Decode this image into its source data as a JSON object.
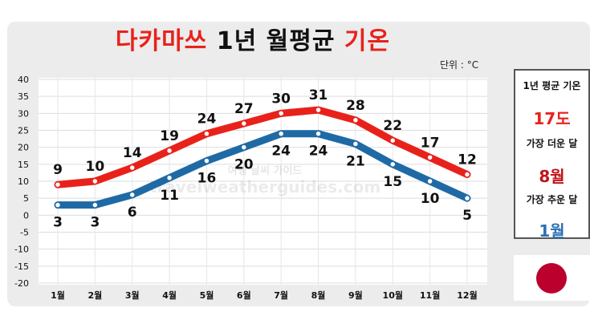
{
  "title": {
    "part1": "다카마쓰",
    "part2": "1년 월평균",
    "part3": "기온"
  },
  "unit_label": "단위 : °C",
  "watermark": {
    "line1": "여행 날씨 가이드",
    "line2": "travelweatherguides.com"
  },
  "summary": {
    "annual_avg_label": "1년 평균 기온",
    "annual_avg_value": "17도",
    "hottest_label": "가장 더운 달",
    "hottest_value": "8월",
    "coldest_label": "가장 추운 달",
    "coldest_value": "1월"
  },
  "flag": "japan-flag",
  "colors": {
    "high": "#e8221b",
    "low": "#1f6aa5",
    "accent_red": "#e8221b",
    "accent_blue": "#2f6fb4"
  },
  "chart_data": {
    "type": "line",
    "categories": [
      "1월",
      "2월",
      "3월",
      "4월",
      "5월",
      "6월",
      "7월",
      "8월",
      "9월",
      "10월",
      "11월",
      "12월"
    ],
    "series": [
      {
        "values": [
          9,
          10,
          14,
          19,
          24,
          27,
          30,
          31,
          28,
          22,
          17,
          12
        ]
      },
      {
        "values": [
          3,
          3,
          6,
          11,
          16,
          20,
          24,
          24,
          21,
          15,
          10,
          5
        ]
      }
    ],
    "yticks": [
      40,
      35,
      30,
      25,
      20,
      15,
      10,
      5,
      0,
      -5,
      -10,
      -15,
      -20
    ],
    "ylim": [
      -20,
      40
    ],
    "grid": true
  }
}
